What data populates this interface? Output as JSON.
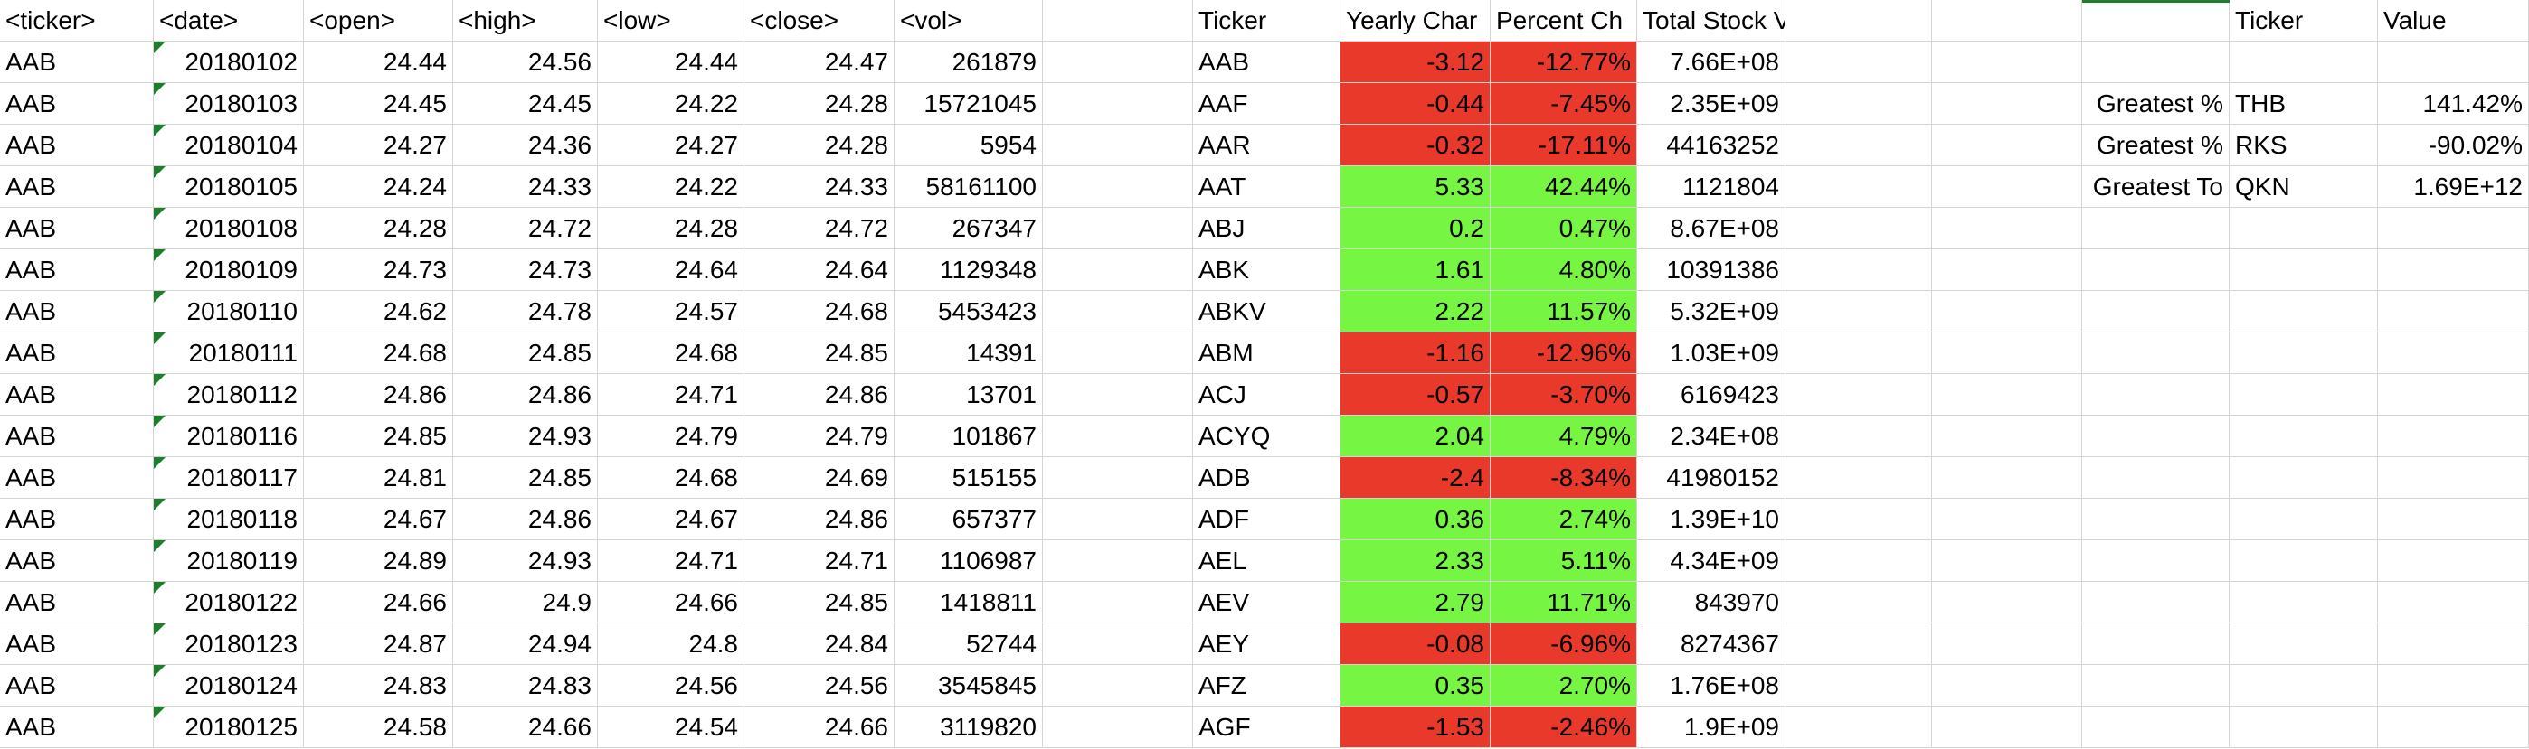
{
  "headers": {
    "raw": [
      "<ticker>",
      "<date>",
      "<open>",
      "<high>",
      "<low>",
      "<close>",
      "<vol>"
    ],
    "summary": [
      "Ticker",
      "Yearly Char",
      "Percent Ch",
      "Total Stock Volume"
    ],
    "greatest": [
      "Ticker",
      "Value"
    ]
  },
  "raw_rows": [
    [
      "AAB",
      "20180102",
      "24.44",
      "24.56",
      "24.44",
      "24.47",
      "261879"
    ],
    [
      "AAB",
      "20180103",
      "24.45",
      "24.45",
      "24.22",
      "24.28",
      "15721045"
    ],
    [
      "AAB",
      "20180104",
      "24.27",
      "24.36",
      "24.27",
      "24.28",
      "5954"
    ],
    [
      "AAB",
      "20180105",
      "24.24",
      "24.33",
      "24.22",
      "24.33",
      "58161100"
    ],
    [
      "AAB",
      "20180108",
      "24.28",
      "24.72",
      "24.28",
      "24.72",
      "267347"
    ],
    [
      "AAB",
      "20180109",
      "24.73",
      "24.73",
      "24.64",
      "24.64",
      "1129348"
    ],
    [
      "AAB",
      "20180110",
      "24.62",
      "24.78",
      "24.57",
      "24.68",
      "5453423"
    ],
    [
      "AAB",
      "20180111",
      "24.68",
      "24.85",
      "24.68",
      "24.85",
      "14391"
    ],
    [
      "AAB",
      "20180112",
      "24.86",
      "24.86",
      "24.71",
      "24.86",
      "13701"
    ],
    [
      "AAB",
      "20180116",
      "24.85",
      "24.93",
      "24.79",
      "24.79",
      "101867"
    ],
    [
      "AAB",
      "20180117",
      "24.81",
      "24.85",
      "24.68",
      "24.69",
      "515155"
    ],
    [
      "AAB",
      "20180118",
      "24.67",
      "24.86",
      "24.67",
      "24.86",
      "657377"
    ],
    [
      "AAB",
      "20180119",
      "24.89",
      "24.93",
      "24.71",
      "24.71",
      "1106987"
    ],
    [
      "AAB",
      "20180122",
      "24.66",
      "24.9",
      "24.66",
      "24.85",
      "1418811"
    ],
    [
      "AAB",
      "20180123",
      "24.87",
      "24.94",
      "24.8",
      "24.84",
      "52744"
    ],
    [
      "AAB",
      "20180124",
      "24.83",
      "24.83",
      "24.56",
      "24.56",
      "3545845"
    ],
    [
      "AAB",
      "20180125",
      "24.58",
      "24.66",
      "24.54",
      "24.66",
      "3119820"
    ]
  ],
  "summary_rows": [
    {
      "ticker": "AAB",
      "change": "-3.12",
      "percent": "-12.77%",
      "volume": "7.66E+08",
      "status": "negative"
    },
    {
      "ticker": "AAF",
      "change": "-0.44",
      "percent": "-7.45%",
      "volume": "2.35E+09",
      "status": "negative"
    },
    {
      "ticker": "AAR",
      "change": "-0.32",
      "percent": "-17.11%",
      "volume": "44163252",
      "status": "negative"
    },
    {
      "ticker": "AAT",
      "change": "5.33",
      "percent": "42.44%",
      "volume": "1121804",
      "status": "positive"
    },
    {
      "ticker": "ABJ",
      "change": "0.2",
      "percent": "0.47%",
      "volume": "8.67E+08",
      "status": "positive"
    },
    {
      "ticker": "ABK",
      "change": "1.61",
      "percent": "4.80%",
      "volume": "10391386",
      "status": "positive"
    },
    {
      "ticker": "ABKV",
      "change": "2.22",
      "percent": "11.57%",
      "volume": "5.32E+09",
      "status": "positive"
    },
    {
      "ticker": "ABM",
      "change": "-1.16",
      "percent": "-12.96%",
      "volume": "1.03E+09",
      "status": "negative"
    },
    {
      "ticker": "ACJ",
      "change": "-0.57",
      "percent": "-3.70%",
      "volume": "6169423",
      "status": "negative"
    },
    {
      "ticker": "ACYQ",
      "change": "2.04",
      "percent": "4.79%",
      "volume": "2.34E+08",
      "status": "positive"
    },
    {
      "ticker": "ADB",
      "change": "-2.4",
      "percent": "-8.34%",
      "volume": "41980152",
      "status": "negative"
    },
    {
      "ticker": "ADF",
      "change": "0.36",
      "percent": "2.74%",
      "volume": "1.39E+10",
      "status": "positive"
    },
    {
      "ticker": "AEL",
      "change": "2.33",
      "percent": "5.11%",
      "volume": "4.34E+09",
      "status": "positive"
    },
    {
      "ticker": "AEV",
      "change": "2.79",
      "percent": "11.71%",
      "volume": "843970",
      "status": "positive"
    },
    {
      "ticker": "AEY",
      "change": "-0.08",
      "percent": "-6.96%",
      "volume": "8274367",
      "status": "negative"
    },
    {
      "ticker": "AFZ",
      "change": "0.35",
      "percent": "2.70%",
      "volume": "1.76E+08",
      "status": "positive"
    },
    {
      "ticker": "AGF",
      "change": "-1.53",
      "percent": "-2.46%",
      "volume": "1.9E+09",
      "status": "negative"
    }
  ],
  "greatest_rows": [
    {
      "label": "Greatest %",
      "ticker": "THB",
      "value": "141.42%"
    },
    {
      "label": "Greatest %",
      "ticker": "RKS",
      "value": "-90.02%"
    },
    {
      "label": "Greatest To",
      "ticker": "QKN",
      "value": "1.69E+12"
    }
  ],
  "colors": {
    "negative": "#e8392b",
    "positive": "#76f543",
    "grid": "#d4d4d4",
    "comment_marker": "#1f7d2e"
  }
}
